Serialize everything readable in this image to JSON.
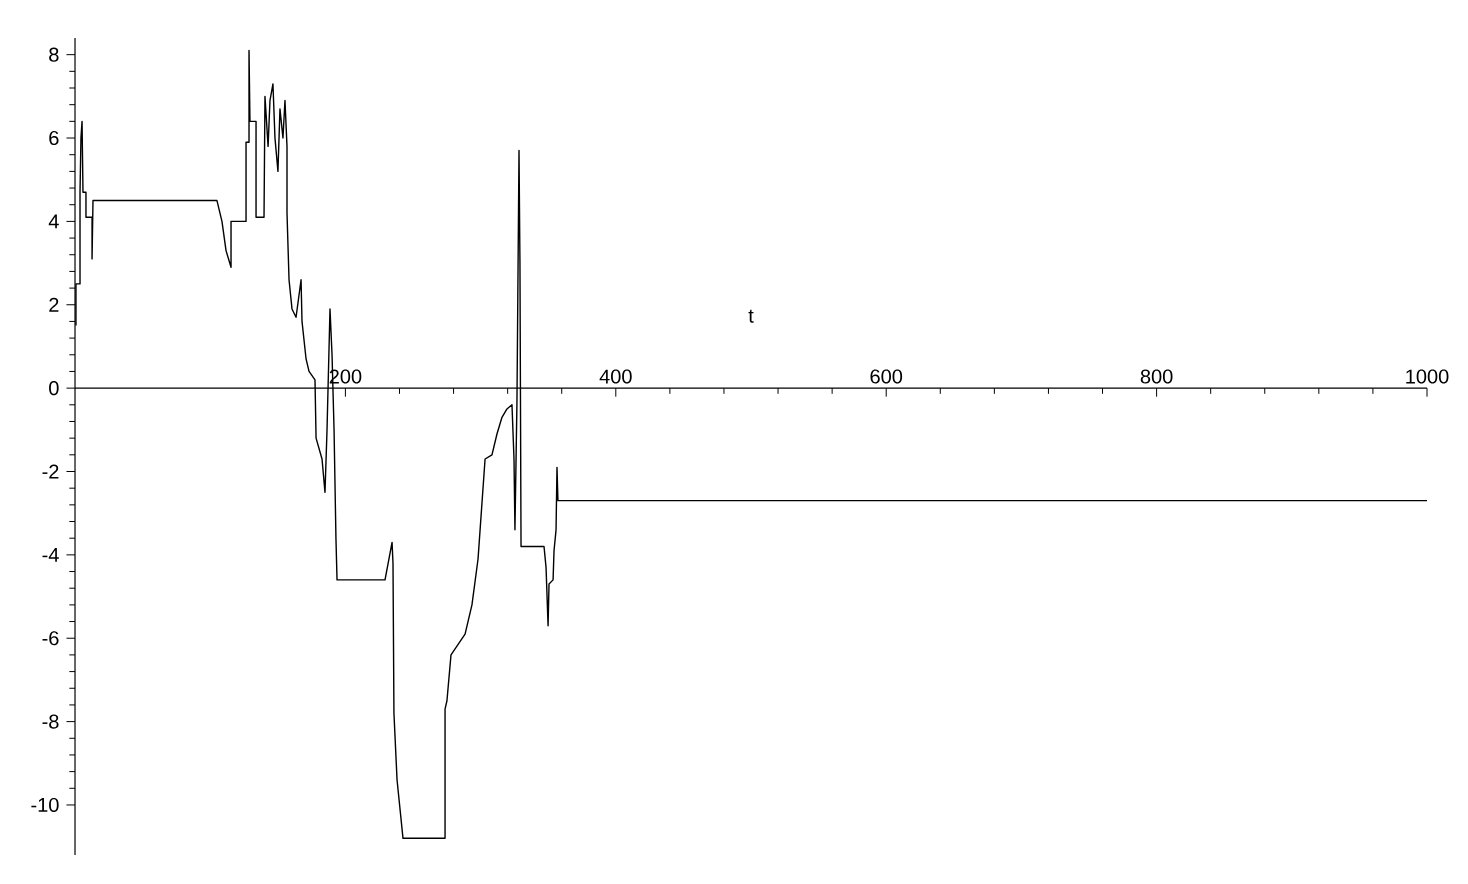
{
  "chart_data": {
    "type": "line",
    "xlabel": "t",
    "color": "#000000",
    "x": [
      0.7,
      0.7,
      3.7,
      3.7,
      4.4,
      5.2,
      5.9,
      8.1,
      8.1,
      12.6,
      12.6,
      13.3,
      105.0,
      108.7,
      111.7,
      115.4,
      115.4,
      126.5,
      126.5,
      128.7,
      128.7,
      129.4,
      133.9,
      133.9,
      139.8,
      140.5,
      142.8,
      144.2,
      146.4,
      147.9,
      150.1,
      151.6,
      153.8,
      155.3,
      156.8,
      156.8,
      158.3,
      160.5,
      163.5,
      167.2,
      167.9,
      170.9,
      173.1,
      177.5,
      178.3,
      182.7,
      184.9,
      186.4,
      188.6,
      190.1,
      191.6,
      193.0,
      193.8,
      229.3,
      234.5,
      235.2,
      235.9,
      238.2,
      242.6,
      273.7,
      273.7,
      275.1,
      278.1,
      288.5,
      293.6,
      298.1,
      303.3,
      308.4,
      312.1,
      315.8,
      319.5,
      323.2,
      324.7,
      325.4,
      326.9,
      328.4,
      329.1,
      329.9,
      346.9,
      348.4,
      349.9,
      350.6,
      353.6,
      354.3,
      355.8,
      356.5,
      357.2,
      1000
    ],
    "values": [
      1.5,
      2.5,
      2.5,
      4.7,
      6.0,
      6.4,
      4.7,
      4.7,
      4.1,
      4.1,
      3.1,
      4.5,
      4.5,
      4.0,
      3.3,
      2.9,
      4.0,
      4.0,
      5.9,
      5.9,
      8.1,
      6.4,
      6.4,
      4.1,
      4.1,
      7.0,
      5.8,
      6.9,
      7.3,
      6.0,
      5.2,
      6.7,
      6.0,
      6.9,
      5.8,
      4.2,
      2.6,
      1.9,
      1.7,
      2.6,
      1.6,
      0.7,
      0.4,
      0.2,
      -1.2,
      -1.7,
      -2.5,
      -1.0,
      1.9,
      0.8,
      -1.0,
      -3.6,
      -4.6,
      -4.6,
      -3.7,
      -4.2,
      -7.8,
      -9.4,
      -10.8,
      -10.8,
      -7.7,
      -7.5,
      -6.4,
      -5.9,
      -5.2,
      -4.1,
      -1.7,
      -1.6,
      -1.1,
      -0.7,
      -0.5,
      -0.4,
      -1.7,
      -3.4,
      -0.3,
      5.7,
      3.0,
      -3.8,
      -3.8,
      -4.3,
      -5.7,
      -4.7,
      -4.6,
      -3.9,
      -3.4,
      -1.9,
      -2.7,
      -2.7
    ],
    "xlim": [
      0,
      1000
    ],
    "ylim": [
      -11.2,
      8.4
    ],
    "xticks": [
      200,
      400,
      600,
      800,
      1000
    ],
    "yticks": [
      -10,
      -8,
      -6,
      -4,
      -2,
      0,
      2,
      4,
      6,
      8
    ]
  }
}
